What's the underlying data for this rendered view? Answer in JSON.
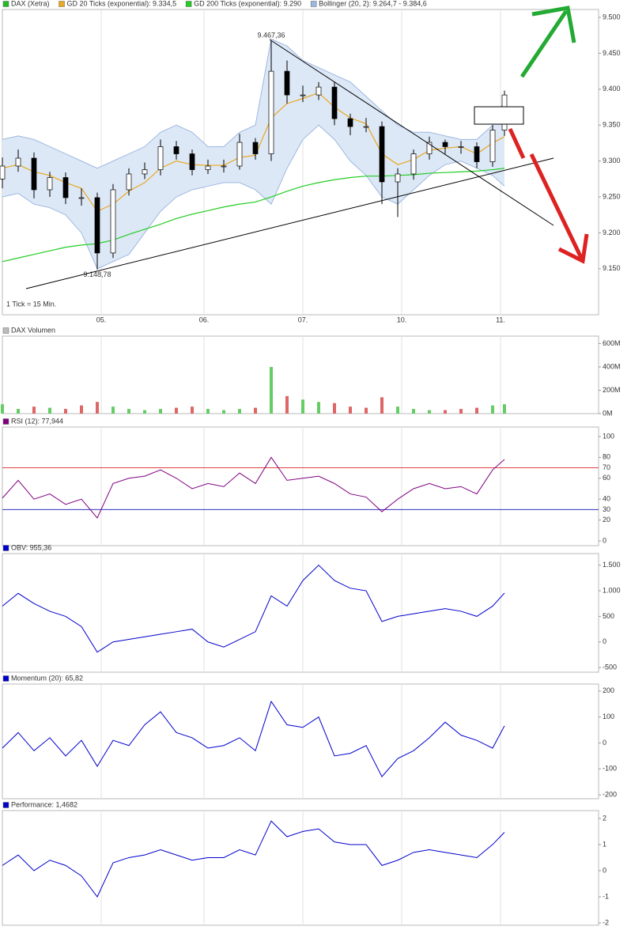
{
  "chart_data": [
    {
      "type": "candlestick",
      "name": "DAX (Xetra)",
      "color": "#22bb22",
      "x": [
        0,
        4,
        8,
        12,
        16,
        20,
        24,
        28,
        32,
        36,
        40,
        44,
        48,
        52,
        56,
        60,
        64,
        68,
        72,
        76,
        80,
        84,
        88,
        92,
        96,
        100,
        104,
        108,
        112,
        116,
        120,
        124,
        127
      ],
      "open": [
        9.275,
        9.293,
        9.304,
        9.26,
        9.277,
        9.249,
        9.249,
        9.172,
        9.26,
        9.282,
        9.288,
        9.32,
        9.31,
        9.288,
        9.293,
        9.293,
        9.326,
        9.31,
        9.425,
        9.392,
        9.392,
        9.403,
        9.359,
        9.348,
        9.348,
        9.271,
        9.282,
        9.31,
        9.326,
        9.32,
        9.32,
        9.299,
        9.343
      ],
      "high": [
        9.305,
        9.316,
        9.312,
        9.285,
        9.284,
        9.262,
        9.256,
        9.268,
        9.29,
        9.298,
        9.33,
        9.328,
        9.316,
        9.302,
        9.302,
        9.338,
        9.332,
        9.467,
        9.44,
        9.405,
        9.41,
        9.41,
        9.366,
        9.36,
        9.355,
        9.29,
        9.316,
        9.334,
        9.33,
        9.328,
        9.326,
        9.35,
        9.398
      ],
      "low": [
        9.262,
        9.285,
        9.248,
        9.25,
        9.24,
        9.238,
        9.149,
        9.165,
        9.252,
        9.275,
        9.28,
        9.302,
        9.28,
        9.282,
        9.284,
        9.288,
        9.302,
        9.3,
        9.38,
        9.382,
        9.385,
        9.35,
        9.336,
        9.34,
        9.24,
        9.222,
        9.274,
        9.302,
        9.31,
        9.31,
        9.29,
        9.292,
        9.335
      ],
      "close": [
        9.293,
        9.304,
        9.26,
        9.277,
        9.249,
        9.249,
        9.172,
        9.26,
        9.282,
        9.288,
        9.32,
        9.31,
        9.288,
        9.293,
        9.293,
        9.326,
        9.31,
        9.425,
        9.392,
        9.392,
        9.403,
        9.359,
        9.348,
        9.348,
        9.271,
        9.282,
        9.31,
        9.326,
        9.32,
        9.32,
        9.299,
        9.343,
        9.392
      ],
      "series": [
        {
          "name": "GD 20 Ticks (exponential): 9.334,5",
          "color": "#e8a820",
          "values": [
            9.29,
            9.295,
            9.285,
            9.28,
            9.27,
            9.262,
            9.23,
            9.24,
            9.258,
            9.27,
            9.29,
            9.3,
            9.295,
            9.294,
            9.294,
            9.305,
            9.308,
            9.36,
            9.38,
            9.387,
            9.395,
            9.375,
            9.36,
            9.352,
            9.31,
            9.295,
            9.302,
            9.315,
            9.318,
            9.32,
            9.31,
            9.325,
            9.334
          ]
        },
        {
          "name": "GD 200 Ticks (exponential): 9.290",
          "color": "#22cc22",
          "values": [
            9.16,
            9.165,
            9.17,
            9.175,
            9.18,
            9.183,
            9.185,
            9.19,
            9.198,
            9.205,
            9.212,
            9.22,
            9.226,
            9.231,
            9.236,
            9.24,
            9.243,
            9.25,
            9.258,
            9.265,
            9.27,
            9.274,
            9.277,
            9.279,
            9.279,
            9.28,
            9.281,
            9.283,
            9.284,
            9.285,
            9.286,
            9.288,
            9.29
          ]
        },
        {
          "name": "Bollinger (20, 2): 9.264,7 - 9.384,6",
          "color": "#9db8e0",
          "fill": "#dde8f7",
          "upper": [
            9.33,
            9.335,
            9.33,
            9.32,
            9.31,
            9.3,
            9.29,
            9.3,
            9.31,
            9.32,
            9.34,
            9.35,
            9.34,
            9.32,
            9.32,
            9.34,
            9.35,
            9.47,
            9.46,
            9.44,
            9.43,
            9.42,
            9.41,
            9.39,
            9.37,
            9.35,
            9.34,
            9.34,
            9.335,
            9.33,
            9.33,
            9.35,
            9.385
          ],
          "lower": [
            9.25,
            9.255,
            9.24,
            9.235,
            9.225,
            9.2,
            9.15,
            9.16,
            9.17,
            9.2,
            9.23,
            9.25,
            9.26,
            9.265,
            9.27,
            9.27,
            9.26,
            9.24,
            9.29,
            9.33,
            9.35,
            9.33,
            9.3,
            9.28,
            9.25,
            9.24,
            9.26,
            9.28,
            9.295,
            9.3,
            9.29,
            9.28,
            9.265
          ]
        }
      ],
      "annotations": [
        {
          "text": "9.467,36",
          "x": 68,
          "y": 9.467
        },
        {
          "text": "9.148,78",
          "x": 24,
          "y": 9.149
        }
      ],
      "footnote": "1 Tick = 15 Min.",
      "xlim": [
        0,
        150.8
      ],
      "xticks": [
        {
          "value": 25,
          "label": "05."
        },
        {
          "value": 51,
          "label": "06."
        },
        {
          "value": 76,
          "label": "07."
        },
        {
          "value": 101,
          "label": "10."
        },
        {
          "value": 126,
          "label": "11."
        }
      ],
      "ylim": [
        9.086,
        9.511
      ],
      "yticks": [
        {
          "value": 9.15,
          "label": "9.150"
        },
        {
          "value": 9.2,
          "label": "9.200"
        },
        {
          "value": 9.25,
          "label": "9.250"
        },
        {
          "value": 9.3,
          "label": "9.300"
        },
        {
          "value": 9.35,
          "label": "9.350"
        },
        {
          "value": 9.4,
          "label": "9.400"
        },
        {
          "value": 9.45,
          "label": "9.450"
        },
        {
          "value": 9.5,
          "label": "9.500"
        }
      ]
    },
    {
      "type": "bar",
      "name": "DAX Volumen",
      "color": "#bbbbbb",
      "x": [
        0,
        4,
        8,
        12,
        16,
        20,
        24,
        28,
        32,
        36,
        40,
        44,
        48,
        52,
        56,
        60,
        64,
        68,
        72,
        76,
        80,
        84,
        88,
        92,
        96,
        100,
        104,
        108,
        112,
        116,
        120,
        124,
        127
      ],
      "values": [
        80,
        40,
        60,
        50,
        40,
        70,
        100,
        60,
        40,
        30,
        40,
        50,
        60,
        40,
        30,
        40,
        50,
        400,
        150,
        120,
        100,
        90,
        60,
        50,
        140,
        60,
        40,
        30,
        30,
        40,
        50,
        70,
        80
      ],
      "colors": [
        "#66cc66",
        "#66cc66",
        "#dd6666",
        "#66cc66",
        "#dd6666",
        "#dd6666",
        "#dd6666",
        "#66cc66",
        "#66cc66",
        "#66cc66",
        "#66cc66",
        "#dd6666",
        "#dd6666",
        "#66cc66",
        "#66cc66",
        "#66cc66",
        "#dd6666",
        "#66cc66",
        "#dd6666",
        "#66cc66",
        "#66cc66",
        "#dd6666",
        "#dd6666",
        "#dd6666",
        "#dd6666",
        "#66cc66",
        "#66cc66",
        "#66cc66",
        "#dd6666",
        "#dd6666",
        "#dd6666",
        "#66cc66",
        "#66cc66"
      ],
      "xlim": [
        0,
        150.8
      ],
      "ylim": [
        0,
        664
      ],
      "yticks": [
        {
          "value": 0,
          "label": "0M"
        },
        {
          "value": 200,
          "label": "200M"
        },
        {
          "value": 400,
          "label": "400M"
        },
        {
          "value": 600,
          "label": "600M"
        }
      ]
    },
    {
      "type": "line",
      "name": "RSI (12): 77,944",
      "color": "#800080",
      "x": [
        0,
        4,
        8,
        12,
        16,
        20,
        24,
        28,
        32,
        36,
        40,
        44,
        48,
        52,
        56,
        60,
        64,
        68,
        72,
        76,
        80,
        84,
        88,
        92,
        96,
        100,
        104,
        108,
        112,
        116,
        120,
        124,
        127
      ],
      "values": [
        41,
        58,
        40,
        45,
        35,
        40,
        22,
        55,
        60,
        62,
        68,
        60,
        50,
        55,
        52,
        65,
        55,
        80,
        58,
        60,
        62,
        55,
        45,
        42,
        28,
        40,
        50,
        55,
        50,
        52,
        45,
        68,
        78
      ],
      "ref_lines": [
        {
          "value": 70,
          "color": "#e04040"
        },
        {
          "value": 30,
          "color": "#3030c0"
        }
      ],
      "xlim": [
        0,
        150.8
      ],
      "ylim": [
        -4.5,
        109
      ],
      "yticks": [
        0,
        20,
        40,
        60,
        80,
        100
      ]
    },
    {
      "type": "line",
      "name": "OBV: 955,36",
      "color": "#0000cc",
      "x": [
        0,
        4,
        8,
        12,
        16,
        20,
        24,
        28,
        32,
        36,
        40,
        44,
        48,
        52,
        56,
        60,
        64,
        68,
        72,
        76,
        80,
        84,
        88,
        92,
        96,
        100,
        104,
        108,
        112,
        116,
        120,
        124,
        127
      ],
      "values": [
        700,
        950,
        750,
        600,
        500,
        300,
        -200,
        0,
        50,
        100,
        150,
        200,
        250,
        0,
        -100,
        50,
        200,
        900,
        700,
        1200,
        1500,
        1200,
        1050,
        1000,
        400,
        500,
        550,
        600,
        650,
        600,
        500,
        700,
        955
      ],
      "xlim": [
        0,
        150.8
      ],
      "ylim": [
        -591,
        1727
      ],
      "yticks": [
        -500,
        0,
        500,
        {
          "value": 1000,
          "label": "1.000"
        },
        {
          "value": 1500,
          "label": "1.500"
        }
      ]
    },
    {
      "type": "line",
      "name": "Momentum (20): 65,82",
      "color": "#0000cc",
      "x": [
        0,
        4,
        8,
        12,
        16,
        20,
        24,
        28,
        32,
        36,
        40,
        44,
        48,
        52,
        56,
        60,
        64,
        68,
        72,
        76,
        80,
        84,
        88,
        92,
        96,
        100,
        104,
        108,
        112,
        116,
        120,
        124,
        127
      ],
      "values": [
        -20,
        40,
        -30,
        20,
        -50,
        10,
        -90,
        10,
        -10,
        70,
        120,
        40,
        20,
        -20,
        -10,
        20,
        -30,
        160,
        70,
        60,
        100,
        -50,
        -40,
        -10,
        -130,
        -60,
        -30,
        20,
        80,
        30,
        10,
        -20,
        66
      ],
      "xlim": [
        0,
        150.8
      ],
      "ylim": [
        -215,
        227
      ],
      "yticks": [
        -200,
        -100,
        0,
        100,
        200
      ]
    },
    {
      "type": "line",
      "name": "Performance: 1,4682",
      "color": "#0000cc",
      "x": [
        0,
        4,
        8,
        12,
        16,
        20,
        24,
        28,
        32,
        36,
        40,
        44,
        48,
        52,
        56,
        60,
        64,
        68,
        72,
        76,
        80,
        84,
        88,
        92,
        96,
        100,
        104,
        108,
        112,
        116,
        120,
        124,
        127
      ],
      "values": [
        0.2,
        0.6,
        0.0,
        0.4,
        0.2,
        -0.2,
        -1.0,
        0.3,
        0.5,
        0.6,
        0.8,
        0.6,
        0.4,
        0.5,
        0.5,
        0.8,
        0.6,
        1.9,
        1.3,
        1.5,
        1.6,
        1.1,
        1.0,
        1.0,
        0.2,
        0.4,
        0.7,
        0.8,
        0.7,
        0.6,
        0.5,
        1.0,
        1.47
      ],
      "xlim": [
        0,
        150.8
      ],
      "ylim": [
        -2.09,
        2.3
      ],
      "yticks": [
        -2,
        -1,
        0,
        1,
        2
      ]
    }
  ]
}
